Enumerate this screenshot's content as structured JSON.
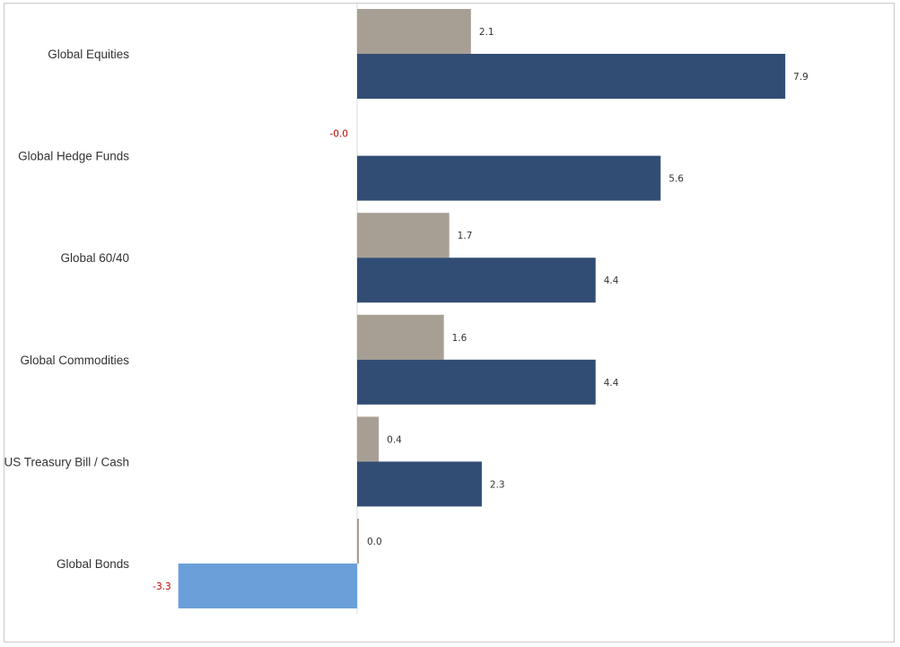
{
  "chart_data": {
    "type": "bar",
    "orientation": "horizontal",
    "categories": [
      "Global Equities",
      "Global Hedge Funds",
      "Global 60/40",
      "Global Commodities",
      "US Treasury Bill / Cash",
      "Global Bonds"
    ],
    "series": [
      {
        "values": [
          2.1,
          -0.0,
          1.7,
          1.6,
          0.4,
          0.0
        ],
        "labels": [
          "2.1",
          "-0.0",
          "1.7",
          "1.6",
          "0.4",
          "0.0"
        ],
        "color": "#a89f94"
      },
      {
        "values": [
          7.9,
          5.6,
          4.4,
          4.4,
          2.3,
          -3.3
        ],
        "labels": [
          "7.9",
          "5.6",
          "4.4",
          "4.4",
          "2.3",
          "-3.3"
        ],
        "color": "#324d74",
        "negative_color": "#6a9fda"
      }
    ],
    "title": "",
    "xlabel": "",
    "ylabel": "",
    "xlim": [
      -3.3,
      7.9
    ],
    "grid": false,
    "legend": "none",
    "negative_label_color": "#c00000",
    "axis_line_color": "#d9d9d9"
  }
}
